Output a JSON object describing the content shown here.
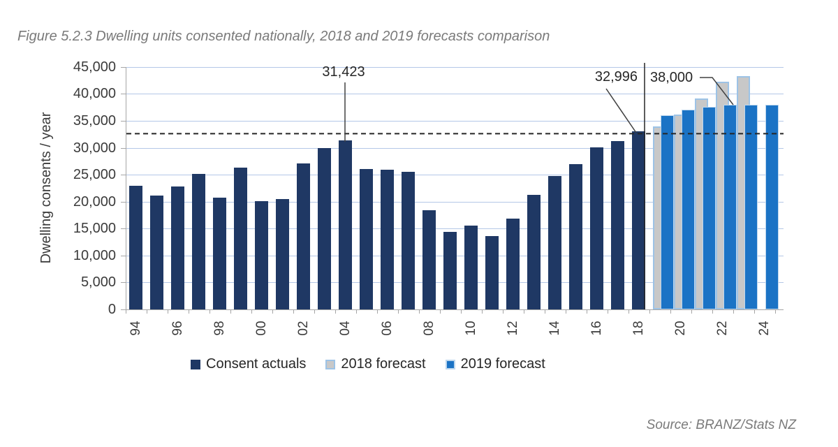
{
  "figure": {
    "title": "Figure 5.2.3 Dwelling units consented nationally, 2018 and 2019 forecasts comparison",
    "source": "Source: BRANZ/Stats NZ"
  },
  "chart_data": {
    "type": "bar",
    "title": "Figure 5.2.3 Dwelling units consented nationally, 2018 and 2019 forecasts comparison",
    "xlabel": "",
    "ylabel": "Dwelling consents / year",
    "ylim": [
      0,
      45000
    ],
    "grid": true,
    "legend_position": "bottom",
    "yticks": [
      {
        "value": 0,
        "label": "0"
      },
      {
        "value": 5000,
        "label": "5,000"
      },
      {
        "value": 10000,
        "label": "10,000"
      },
      {
        "value": 15000,
        "label": "15,000"
      },
      {
        "value": 20000,
        "label": "20,000"
      },
      {
        "value": 25000,
        "label": "25,000"
      },
      {
        "value": 30000,
        "label": "30,000"
      },
      {
        "value": 35000,
        "label": "35,000"
      },
      {
        "value": 40000,
        "label": "40,000"
      },
      {
        "value": 45000,
        "label": "45,000"
      }
    ],
    "series_meta": [
      {
        "key": "actual",
        "name": "Consent actuals",
        "color": "#1F3864",
        "border": ""
      },
      {
        "key": "f2018",
        "name": "2018 forecast",
        "color": "#C8C8C8",
        "border": "#9DC3E6"
      },
      {
        "key": "f2019",
        "name": "2019 forecast",
        "color": "#1B73C5",
        "border": "#BDD7EE"
      }
    ],
    "years": [
      {
        "label": "94",
        "actual": 23000
      },
      {
        "label": "",
        "actual": 21100
      },
      {
        "label": "96",
        "actual": 22800
      },
      {
        "label": "",
        "actual": 25100
      },
      {
        "label": "98",
        "actual": 20700
      },
      {
        "label": "",
        "actual": 26300
      },
      {
        "label": "00",
        "actual": 20100
      },
      {
        "label": "",
        "actual": 20500
      },
      {
        "label": "02",
        "actual": 27100
      },
      {
        "label": "",
        "actual": 30000
      },
      {
        "label": "04",
        "actual": 31423
      },
      {
        "label": "",
        "actual": 26000
      },
      {
        "label": "06",
        "actual": 25900
      },
      {
        "label": "",
        "actual": 25500
      },
      {
        "label": "08",
        "actual": 18400
      },
      {
        "label": "",
        "actual": 14400
      },
      {
        "label": "10",
        "actual": 15600
      },
      {
        "label": "",
        "actual": 13600
      },
      {
        "label": "12",
        "actual": 16800
      },
      {
        "label": "",
        "actual": 21300
      },
      {
        "label": "14",
        "actual": 24700
      },
      {
        "label": "",
        "actual": 27000
      },
      {
        "label": "16",
        "actual": 30100
      },
      {
        "label": "",
        "actual": 31200
      },
      {
        "label": "18",
        "actual": 32996
      },
      {
        "label": "",
        "f2018": 34000,
        "f2019": 36000
      },
      {
        "label": "20",
        "f2018": 36200,
        "f2019": 37000
      },
      {
        "label": "",
        "f2018": 39200,
        "f2019": 37600
      },
      {
        "label": "22",
        "f2018": 42300,
        "f2019": 38000
      },
      {
        "label": "",
        "f2018": 43300,
        "f2019": 38000
      },
      {
        "label": "24",
        "f2019": 38000
      }
    ],
    "dashed_line_value": 32600,
    "annotations": [
      {
        "text": "31,423",
        "series": "actual",
        "year": "04"
      },
      {
        "text": "32,996",
        "series": "actual",
        "year": "18"
      },
      {
        "text": "38,000",
        "series": "f2019",
        "year": "22"
      }
    ]
  }
}
